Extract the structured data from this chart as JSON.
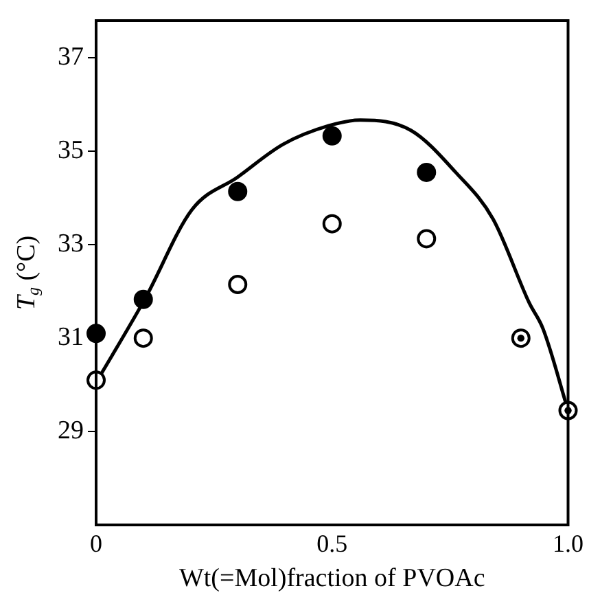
{
  "chart_data": {
    "type": "scatter",
    "xlabel": "Wt(=Mol)fraction of PVOAc",
    "ylabel": "T$_{g}$ (°C)",
    "xlim": [
      0,
      1
    ],
    "xticks": [
      0,
      0.5,
      {
        "value": 1,
        "label": "1.0"
      }
    ],
    "ylim": [
      27,
      37.8
    ],
    "yticks": [
      29,
      31,
      33,
      35,
      37
    ],
    "grid": false,
    "legend": false,
    "series": [
      {
        "type": "line",
        "marker": "none",
        "color": "#000000",
        "x": [
          0,
          0.104,
          0.203,
          0.3,
          0.396,
          0.493,
          0.56,
          0.667,
          0.762,
          0.841,
          0.918,
          0.947,
          1
        ],
        "values": [
          30.05,
          31.85,
          33.75,
          34.45,
          35.15,
          35.55,
          35.67,
          35.45,
          34.55,
          33.55,
          31.75,
          31.2,
          29.45
        ]
      },
      {
        "marker": "circle",
        "color": "#ffffff",
        "x": [
          0,
          0.1,
          0.3,
          0.5,
          0.7,
          0.9,
          1
        ],
        "values": [
          30.1,
          31.0,
          32.15,
          33.45,
          33.13,
          31.0,
          29.45
        ]
      },
      {
        "marker": "circle",
        "color": "#000000",
        "x": [
          0,
          0.1,
          0.3,
          0.5,
          0.7
        ],
        "values": [
          31.1,
          31.83,
          34.14,
          35.33,
          34.55
        ]
      },
      {
        "marker": "circle",
        "color": "#000000",
        "x": [
          0.9,
          1
        ],
        "values": [
          31.0,
          29.45
        ]
      }
    ]
  }
}
